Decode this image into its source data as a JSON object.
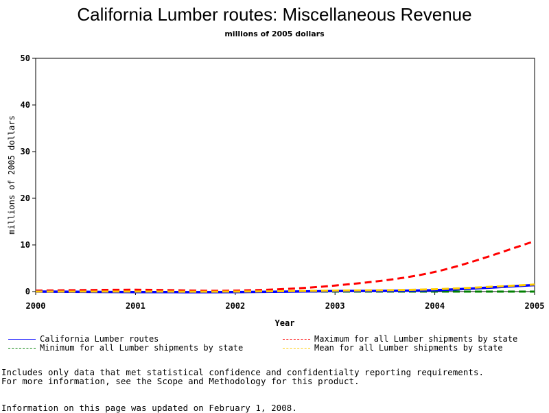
{
  "chart_data": {
    "type": "line",
    "title": "California Lumber routes: Miscellaneous Revenue",
    "subtitle": "millions of 2005 dollars",
    "xlabel": "Year",
    "ylabel": "millions of 2005 dollars",
    "xlim": [
      2000,
      2005
    ],
    "ylim": [
      0,
      50
    ],
    "x_ticks": [
      "2000",
      "2001",
      "2002",
      "2003",
      "2004",
      "2005"
    ],
    "y_ticks": [
      "0",
      "10",
      "20",
      "30",
      "40",
      "50"
    ],
    "grid": false,
    "legend_position": "bottom",
    "x": [
      2000,
      2001,
      2002,
      2003,
      2004,
      2005
    ],
    "series": [
      {
        "name": "California Lumber routes",
        "color": "#0000ff",
        "style": "solid",
        "values": [
          0.0,
          -0.1,
          -0.1,
          0.1,
          0.3,
          1.4
        ]
      },
      {
        "name": "Maximum for all Lumber shipments by state",
        "color": "#ff0000",
        "style": "dashed",
        "values": [
          0.2,
          0.4,
          0.2,
          1.3,
          4.2,
          10.8
        ]
      },
      {
        "name": "Minimum for all Lumber shipments by state",
        "color": "#008000",
        "style": "dashed",
        "values": [
          0.0,
          0.0,
          0.0,
          0.0,
          0.0,
          0.0
        ]
      },
      {
        "name": "Mean for all Lumber shipments by state",
        "color": "#ffcc00",
        "style": "dashed",
        "values": [
          0.0,
          0.0,
          0.0,
          0.2,
          0.5,
          1.5
        ]
      }
    ]
  },
  "notes": {
    "line1": "Includes only data that met statistical confidence and confidentialty reporting requirements.",
    "line2": "For more information, see the Scope and Methodology for this product.",
    "updated": "Information on this page was updated on February 1, 2008."
  }
}
